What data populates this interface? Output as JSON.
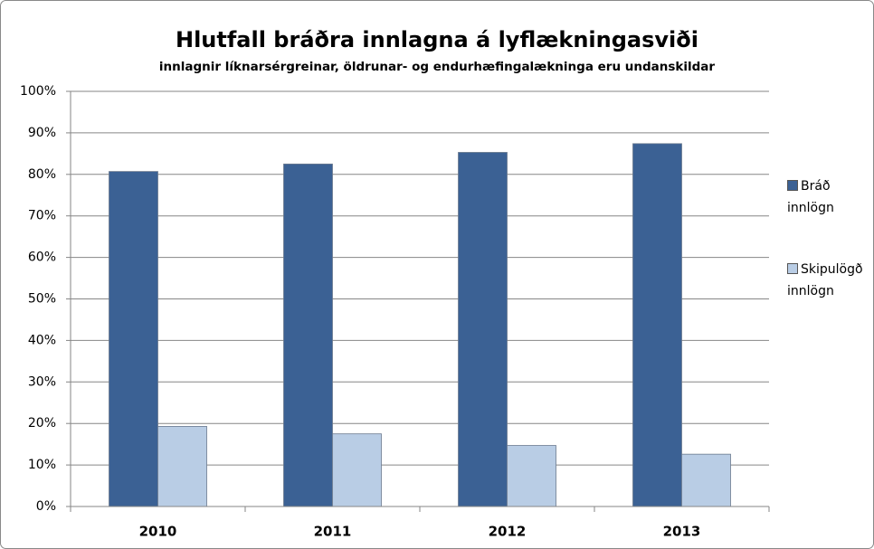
{
  "chart_data": {
    "type": "bar",
    "title": "Hlutfall bráðra innlagna á lyflækningasviði",
    "subtitle": "innlagnir líknarsérgreinar, öldrunar- og endurhæfingalækninga  eru undanskildar",
    "categories": [
      "2010",
      "2011",
      "2012",
      "2013"
    ],
    "series": [
      {
        "name": "Bráð innlögn",
        "color": "#3b6194",
        "values": [
          80.7,
          82.5,
          85.3,
          87.4
        ]
      },
      {
        "name": "Skipulögð innlögn",
        "color": "#b9cde5",
        "values": [
          19.3,
          17.5,
          14.7,
          12.6
        ]
      }
    ],
    "ylim": [
      0,
      100
    ],
    "yticks": [
      {
        "value": 0,
        "label": "0%"
      },
      {
        "value": 10,
        "label": "10%"
      },
      {
        "value": 20,
        "label": "20%"
      },
      {
        "value": 30,
        "label": "30%"
      },
      {
        "value": 40,
        "label": "40%"
      },
      {
        "value": 50,
        "label": "50%"
      },
      {
        "value": 60,
        "label": "60%"
      },
      {
        "value": 70,
        "label": "70%"
      },
      {
        "value": 80,
        "label": "80%"
      },
      {
        "value": 90,
        "label": "90%"
      },
      {
        "value": 100,
        "label": "100%"
      }
    ],
    "grid": true,
    "legend": "right"
  }
}
